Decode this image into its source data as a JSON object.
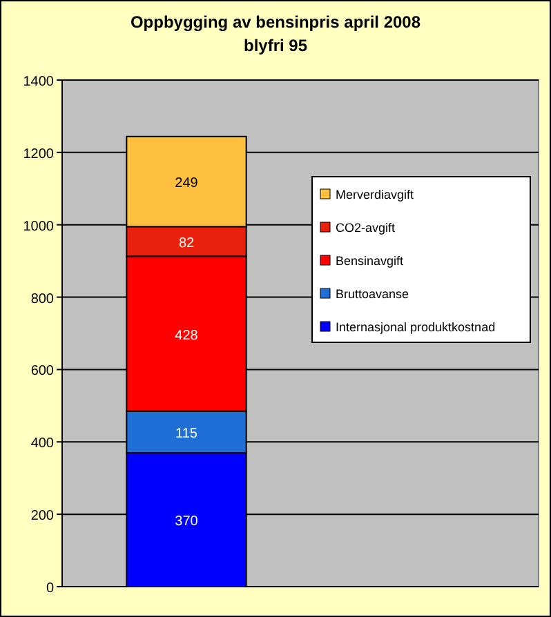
{
  "chart_data": {
    "type": "bar",
    "title": "Oppbygging av bensinpris april 2008\nblyfri 95",
    "categories": [
      null
    ],
    "stacked": true,
    "data_labels": true,
    "grid": "y",
    "legend": "right",
    "ylim": [
      0,
      1400
    ],
    "yticks": [
      0,
      200,
      400,
      600,
      800,
      1000,
      1200,
      1400
    ],
    "series": [
      {
        "name": "Internasjonal produktkostnad",
        "color": "#0000ff",
        "values": [
          370
        ]
      },
      {
        "name": "Bruttoavanse",
        "color": "#1f6fd6",
        "values": [
          115
        ]
      },
      {
        "name": "Bensinavgift",
        "color": "#ff0000",
        "values": [
          428
        ]
      },
      {
        "name": "CO2-avgift",
        "color": "#e8200c",
        "values": [
          82
        ]
      },
      {
        "name": "Merverdiavgift",
        "color": "#ffc040",
        "values": [
          249
        ]
      }
    ]
  }
}
